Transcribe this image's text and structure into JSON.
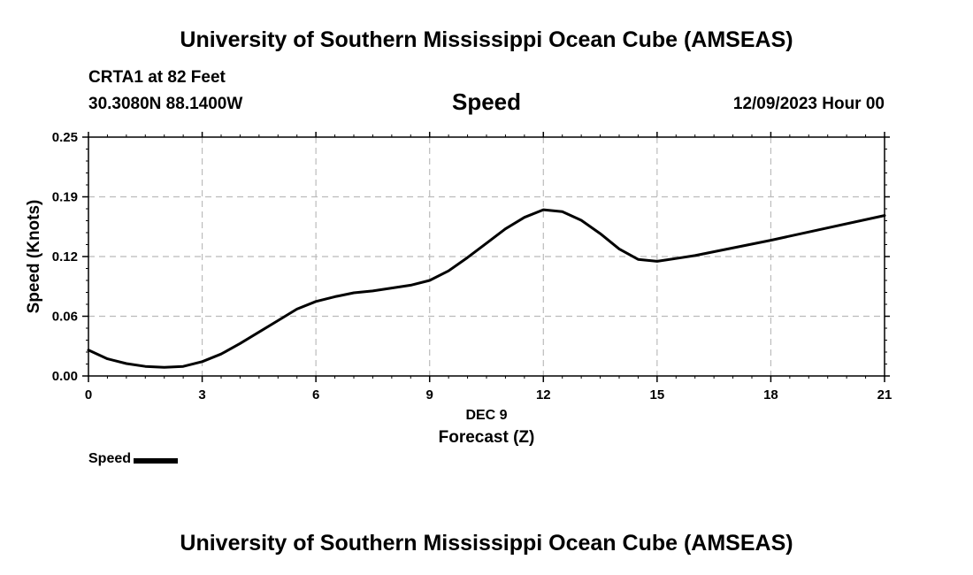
{
  "header": {
    "title": "University of Southern Mississippi Ocean Cube (AMSEAS)",
    "station_line": "CRTA1 at 82 Feet",
    "coords_line": "30.3080N  88.1400W",
    "subtitle": "Speed",
    "date_line": "12/09/2023 Hour 00"
  },
  "footer": {
    "title": "University of Southern Mississippi Ocean Cube (AMSEAS)"
  },
  "legend": {
    "label": "Speed"
  },
  "colors": {
    "line": "#000000",
    "grid": "#bbbbbb",
    "background": "#ffffff"
  },
  "chart_data": {
    "type": "line",
    "title": "Speed",
    "xlabel": "Forecast (Z)",
    "xlabel_day": "DEC 9",
    "ylabel": "Speed (Knots)",
    "xlim": [
      0,
      21
    ],
    "ylim": [
      0,
      0.25
    ],
    "xticks": [
      0,
      3,
      6,
      9,
      12,
      15,
      18,
      21
    ],
    "xtick_labels": [
      "0",
      "3",
      "6",
      "9",
      "12",
      "15",
      "18",
      "21"
    ],
    "yticks": [
      0,
      0.0625,
      0.125,
      0.1875,
      0.25
    ],
    "ytick_labels": [
      "0.00",
      "0.06",
      "0.12",
      "0.19",
      "0.25"
    ],
    "grid": true,
    "series": [
      {
        "name": "Speed",
        "x": [
          0,
          0.5,
          1,
          1.5,
          2,
          2.5,
          3,
          3.5,
          4,
          4.5,
          5,
          5.5,
          6,
          6.5,
          7,
          7.5,
          8,
          8.5,
          9,
          9.5,
          10,
          10.5,
          11,
          11.5,
          12,
          12.5,
          13,
          13.5,
          14,
          14.5,
          15,
          15.5,
          16,
          18,
          21
        ],
        "values": [
          0.027,
          0.018,
          0.013,
          0.01,
          0.009,
          0.01,
          0.015,
          0.023,
          0.034,
          0.046,
          0.058,
          0.07,
          0.078,
          0.083,
          0.087,
          0.089,
          0.092,
          0.095,
          0.1,
          0.11,
          0.124,
          0.139,
          0.154,
          0.166,
          0.174,
          0.172,
          0.163,
          0.149,
          0.133,
          0.122,
          0.12,
          0.123,
          0.126,
          0.142,
          0.168
        ]
      }
    ]
  }
}
